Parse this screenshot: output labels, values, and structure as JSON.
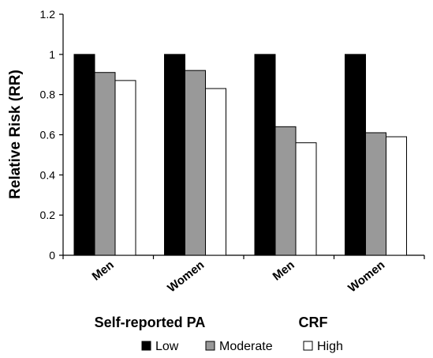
{
  "chart_data": {
    "type": "bar",
    "categories": [
      "Men",
      "Women",
      "Men",
      "Women"
    ],
    "groups": [
      "Self-reported PA",
      "CRF"
    ],
    "series": [
      {
        "name": "Low",
        "values": [
          1.0,
          1.0,
          1.0,
          1.0
        ],
        "color": "#000000"
      },
      {
        "name": "Moderate",
        "values": [
          0.91,
          0.92,
          0.64,
          0.61
        ],
        "color": "#999999"
      },
      {
        "name": "High",
        "values": [
          0.87,
          0.83,
          0.56,
          0.59
        ],
        "color": "#ffffff"
      }
    ],
    "ylabel": "Relative Risk (RR)",
    "ylim": [
      0,
      1.2
    ],
    "yticks": [
      "0",
      "0.2",
      "0.4",
      "0.6",
      "0.8",
      "1",
      "1.2"
    ],
    "grid": false,
    "legend_position": "bottom"
  }
}
